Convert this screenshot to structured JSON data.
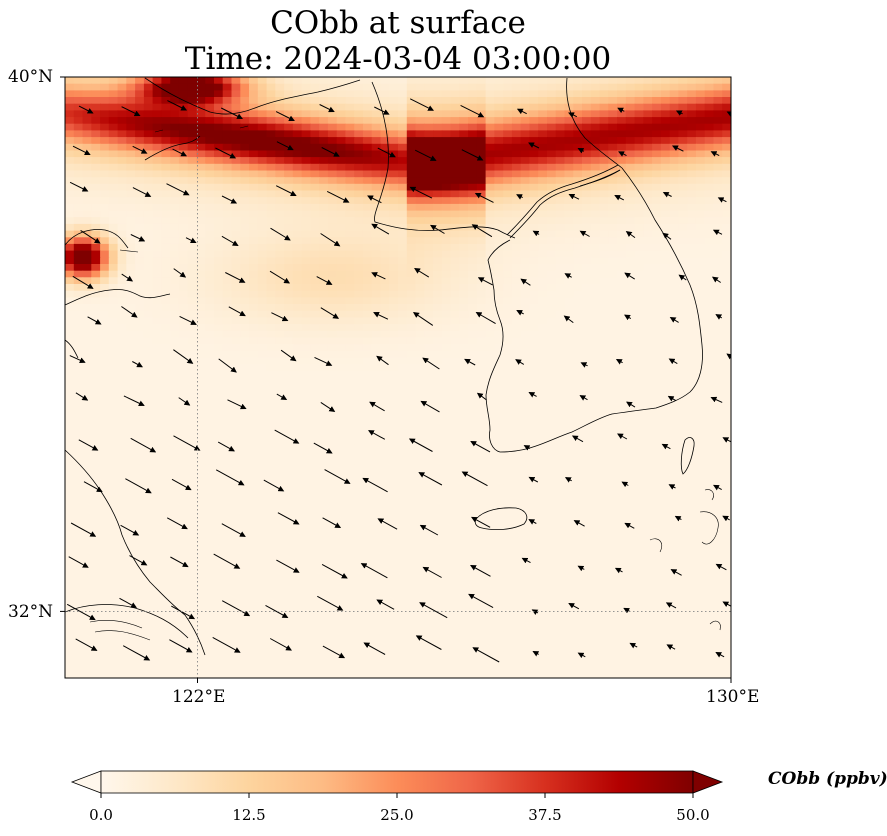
{
  "title": {
    "line1": "CObb at surface",
    "line2": "Time: 2024-03-04 03:00:00"
  },
  "map": {
    "lon_range": [
      120.5,
      130
    ],
    "lat_range": [
      31,
      40
    ],
    "axis_ticks": {
      "lon": [
        {
          "value": 122,
          "label": "122°E"
        },
        {
          "value": 130,
          "label": "130°E"
        }
      ],
      "lat": [
        {
          "value": 40,
          "label": "40°N"
        },
        {
          "value": 32,
          "label": "32°N"
        }
      ]
    },
    "gridlines": {
      "lon": [
        122
      ],
      "lat": [
        32
      ],
      "style": "dotted"
    },
    "field_variable": "CObb",
    "field_units": "ppbv",
    "colormap": "OrRd",
    "plumes": [
      {
        "name": "northwest band",
        "lon": [
          120.5,
          126.0
        ],
        "lat": [
          38.6,
          39.6
        ],
        "peak": 42
      },
      {
        "name": "northeast band",
        "lon": [
          125.6,
          130.0
        ],
        "lat": [
          38.4,
          39.5
        ],
        "peak": 36
      },
      {
        "name": "corner hotspot",
        "lon": [
          121.8,
          123.0
        ],
        "lat": [
          39.6,
          40.0
        ],
        "peak": 55
      },
      {
        "name": "west hotspot",
        "lon": [
          120.5,
          121.0
        ],
        "lat": [
          37.0,
          37.7
        ],
        "peak": 55
      }
    ],
    "wind_vectors": "northwesterly flow shown as black arrows"
  },
  "colorbar": {
    "label": "CObb (ppbv)",
    "min": 0.0,
    "max": 50.0,
    "extend": "both",
    "ticks": [
      "0.0",
      "12.5",
      "25.0",
      "37.5",
      "50.0"
    ],
    "colors": [
      "#fff7ec",
      "#fee8c8",
      "#fdd49e",
      "#fdbb84",
      "#fc8d59",
      "#ef6548",
      "#d7301f",
      "#b30000",
      "#7f0000"
    ]
  }
}
